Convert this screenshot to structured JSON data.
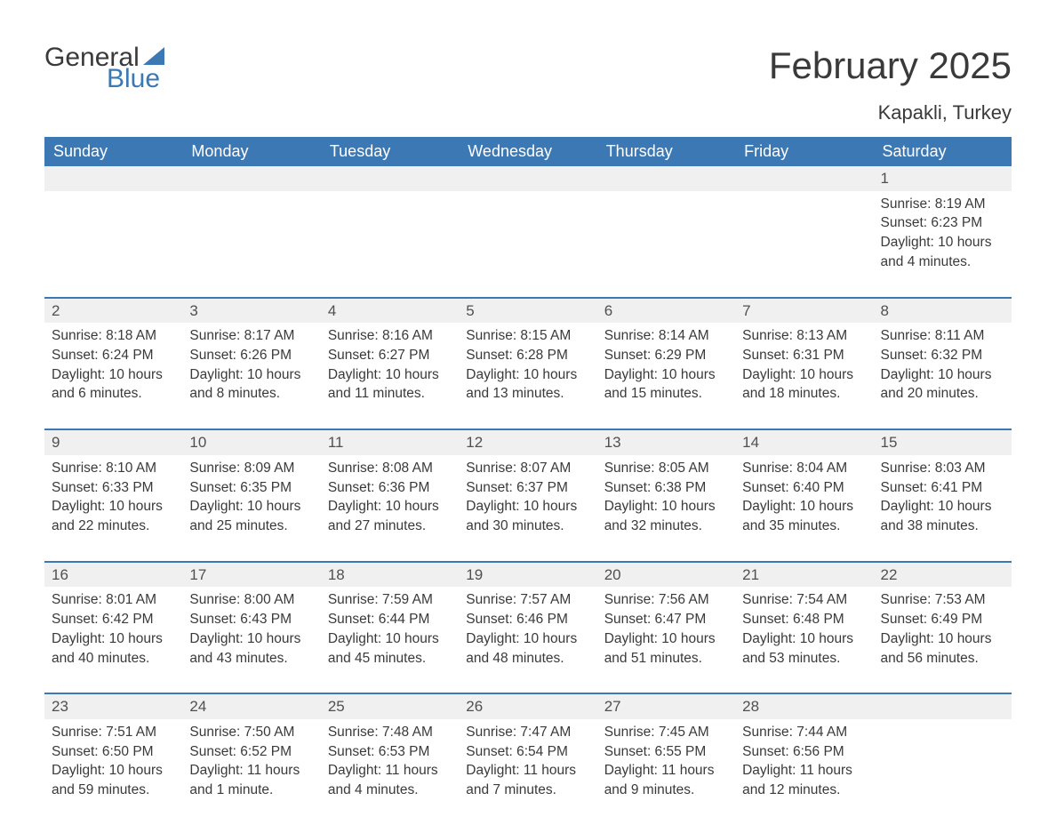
{
  "logo": {
    "text_general": "General",
    "text_blue": "Blue",
    "sail_color": "#3c78b4"
  },
  "title": "February 2025",
  "location": "Kapakli, Turkey",
  "header_bg": "#3c78b4",
  "header_text_color": "#ffffff",
  "daynum_bg": "#f0f0f0",
  "daynum_border": "#3c78b4",
  "body_text_color": "#3a3a3a",
  "weekday_labels": [
    "Sunday",
    "Monday",
    "Tuesday",
    "Wednesday",
    "Thursday",
    "Friday",
    "Saturday"
  ],
  "weeks": [
    [
      {
        "blank": true
      },
      {
        "blank": true
      },
      {
        "blank": true
      },
      {
        "blank": true
      },
      {
        "blank": true
      },
      {
        "blank": true
      },
      {
        "day": "1",
        "sunrise": "Sunrise: 8:19 AM",
        "sunset": "Sunset: 6:23 PM",
        "daylight": "Daylight: 10 hours and 4 minutes."
      }
    ],
    [
      {
        "day": "2",
        "sunrise": "Sunrise: 8:18 AM",
        "sunset": "Sunset: 6:24 PM",
        "daylight": "Daylight: 10 hours and 6 minutes."
      },
      {
        "day": "3",
        "sunrise": "Sunrise: 8:17 AM",
        "sunset": "Sunset: 6:26 PM",
        "daylight": "Daylight: 10 hours and 8 minutes."
      },
      {
        "day": "4",
        "sunrise": "Sunrise: 8:16 AM",
        "sunset": "Sunset: 6:27 PM",
        "daylight": "Daylight: 10 hours and 11 minutes."
      },
      {
        "day": "5",
        "sunrise": "Sunrise: 8:15 AM",
        "sunset": "Sunset: 6:28 PM",
        "daylight": "Daylight: 10 hours and 13 minutes."
      },
      {
        "day": "6",
        "sunrise": "Sunrise: 8:14 AM",
        "sunset": "Sunset: 6:29 PM",
        "daylight": "Daylight: 10 hours and 15 minutes."
      },
      {
        "day": "7",
        "sunrise": "Sunrise: 8:13 AM",
        "sunset": "Sunset: 6:31 PM",
        "daylight": "Daylight: 10 hours and 18 minutes."
      },
      {
        "day": "8",
        "sunrise": "Sunrise: 8:11 AM",
        "sunset": "Sunset: 6:32 PM",
        "daylight": "Daylight: 10 hours and 20 minutes."
      }
    ],
    [
      {
        "day": "9",
        "sunrise": "Sunrise: 8:10 AM",
        "sunset": "Sunset: 6:33 PM",
        "daylight": "Daylight: 10 hours and 22 minutes."
      },
      {
        "day": "10",
        "sunrise": "Sunrise: 8:09 AM",
        "sunset": "Sunset: 6:35 PM",
        "daylight": "Daylight: 10 hours and 25 minutes."
      },
      {
        "day": "11",
        "sunrise": "Sunrise: 8:08 AM",
        "sunset": "Sunset: 6:36 PM",
        "daylight": "Daylight: 10 hours and 27 minutes."
      },
      {
        "day": "12",
        "sunrise": "Sunrise: 8:07 AM",
        "sunset": "Sunset: 6:37 PM",
        "daylight": "Daylight: 10 hours and 30 minutes."
      },
      {
        "day": "13",
        "sunrise": "Sunrise: 8:05 AM",
        "sunset": "Sunset: 6:38 PM",
        "daylight": "Daylight: 10 hours and 32 minutes."
      },
      {
        "day": "14",
        "sunrise": "Sunrise: 8:04 AM",
        "sunset": "Sunset: 6:40 PM",
        "daylight": "Daylight: 10 hours and 35 minutes."
      },
      {
        "day": "15",
        "sunrise": "Sunrise: 8:03 AM",
        "sunset": "Sunset: 6:41 PM",
        "daylight": "Daylight: 10 hours and 38 minutes."
      }
    ],
    [
      {
        "day": "16",
        "sunrise": "Sunrise: 8:01 AM",
        "sunset": "Sunset: 6:42 PM",
        "daylight": "Daylight: 10 hours and 40 minutes."
      },
      {
        "day": "17",
        "sunrise": "Sunrise: 8:00 AM",
        "sunset": "Sunset: 6:43 PM",
        "daylight": "Daylight: 10 hours and 43 minutes."
      },
      {
        "day": "18",
        "sunrise": "Sunrise: 7:59 AM",
        "sunset": "Sunset: 6:44 PM",
        "daylight": "Daylight: 10 hours and 45 minutes."
      },
      {
        "day": "19",
        "sunrise": "Sunrise: 7:57 AM",
        "sunset": "Sunset: 6:46 PM",
        "daylight": "Daylight: 10 hours and 48 minutes."
      },
      {
        "day": "20",
        "sunrise": "Sunrise: 7:56 AM",
        "sunset": "Sunset: 6:47 PM",
        "daylight": "Daylight: 10 hours and 51 minutes."
      },
      {
        "day": "21",
        "sunrise": "Sunrise: 7:54 AM",
        "sunset": "Sunset: 6:48 PM",
        "daylight": "Daylight: 10 hours and 53 minutes."
      },
      {
        "day": "22",
        "sunrise": "Sunrise: 7:53 AM",
        "sunset": "Sunset: 6:49 PM",
        "daylight": "Daylight: 10 hours and 56 minutes."
      }
    ],
    [
      {
        "day": "23",
        "sunrise": "Sunrise: 7:51 AM",
        "sunset": "Sunset: 6:50 PM",
        "daylight": "Daylight: 10 hours and 59 minutes."
      },
      {
        "day": "24",
        "sunrise": "Sunrise: 7:50 AM",
        "sunset": "Sunset: 6:52 PM",
        "daylight": "Daylight: 11 hours and 1 minute."
      },
      {
        "day": "25",
        "sunrise": "Sunrise: 7:48 AM",
        "sunset": "Sunset: 6:53 PM",
        "daylight": "Daylight: 11 hours and 4 minutes."
      },
      {
        "day": "26",
        "sunrise": "Sunrise: 7:47 AM",
        "sunset": "Sunset: 6:54 PM",
        "daylight": "Daylight: 11 hours and 7 minutes."
      },
      {
        "day": "27",
        "sunrise": "Sunrise: 7:45 AM",
        "sunset": "Sunset: 6:55 PM",
        "daylight": "Daylight: 11 hours and 9 minutes."
      },
      {
        "day": "28",
        "sunrise": "Sunrise: 7:44 AM",
        "sunset": "Sunset: 6:56 PM",
        "daylight": "Daylight: 11 hours and 12 minutes."
      },
      {
        "blank": true
      }
    ]
  ]
}
